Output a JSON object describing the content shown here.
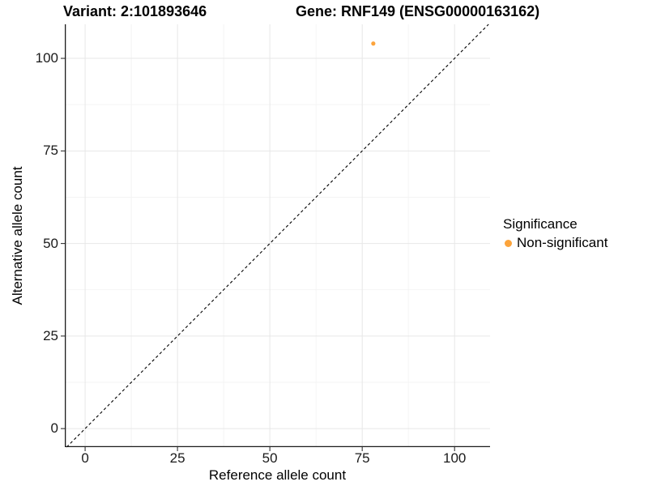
{
  "titles": {
    "variant": "Variant: 2:101893646",
    "gene": "Gene: RNF149 (ENSG00000163162)"
  },
  "axes": {
    "x_label": "Reference allele count",
    "y_label": "Alternative allele count"
  },
  "legend": {
    "title": "Significance",
    "items": [
      {
        "label": "Non-significant",
        "color": "#FCA43C"
      }
    ]
  },
  "colors": {
    "grid_major": "#E7E7E7",
    "grid_minor": "#F3F3F3",
    "axis_line": "#1a1a1a",
    "tick_mark": "#333333",
    "identity_line": "#000000",
    "point": "#FCA43C"
  },
  "chart_data": {
    "type": "scatter",
    "title": "Variant: 2:101893646 — Gene: RNF149 (ENSG00000163162)",
    "xlabel": "Reference allele count",
    "ylabel": "Alternative allele count",
    "xlim": [
      -5.5,
      109.6
    ],
    "ylim": [
      -5.0,
      109.2
    ],
    "xticks": [
      0,
      25,
      50,
      75,
      100
    ],
    "yticks": [
      0,
      25,
      50,
      75,
      100
    ],
    "x_minor": [
      12.5,
      37.5,
      62.5,
      87.5
    ],
    "y_minor": [
      12.5,
      37.5,
      62.5,
      87.5
    ],
    "grid": true,
    "legend_position": "right",
    "identity_line": {
      "slope": 1,
      "intercept": 0,
      "style": "dashed"
    },
    "series": [
      {
        "name": "Non-significant",
        "color": "#FCA43C",
        "points": [
          {
            "x": 78,
            "y": 104
          }
        ]
      }
    ]
  }
}
